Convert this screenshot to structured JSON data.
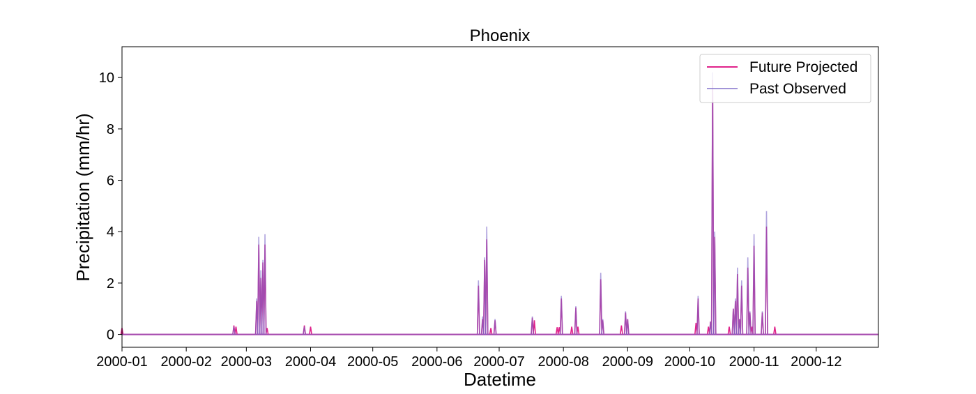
{
  "chart_data": {
    "type": "line",
    "title": "Phoenix",
    "xlabel": "Datetime",
    "ylabel": "Precipitation (mm/hr)",
    "xlim": [
      "2000-01-01",
      "2000-12-31"
    ],
    "ylim": [
      -0.5,
      11.2
    ],
    "x_tick_labels": [
      "2000-01",
      "2000-02",
      "2000-03",
      "2000-04",
      "2000-05",
      "2000-06",
      "2000-07",
      "2000-08",
      "2000-09",
      "2000-10",
      "2000-11",
      "2000-12"
    ],
    "x_tick_dates": [
      "2000-01-01",
      "2000-02-01",
      "2000-03-01",
      "2000-04-01",
      "2000-05-01",
      "2000-06-01",
      "2000-07-01",
      "2000-08-01",
      "2000-09-01",
      "2000-10-01",
      "2000-11-01",
      "2000-12-01"
    ],
    "y_ticks": [
      0,
      2,
      4,
      6,
      8,
      10
    ],
    "y_tick_labels": [
      "0",
      "2",
      "4",
      "6",
      "8",
      "10"
    ],
    "grid": false,
    "legend": {
      "position": "top-right",
      "entries": [
        "Future Projected",
        "Past Observed"
      ]
    },
    "series": [
      {
        "name": "Future Projected",
        "color": "#e0218a",
        "opacity": 1.0,
        "spikes": [
          [
            "2000-01-01",
            0.25
          ],
          [
            "2000-02-24",
            0.35
          ],
          [
            "2000-02-25",
            0.3
          ],
          [
            "2000-03-06",
            1.3
          ],
          [
            "2000-03-07",
            3.5
          ],
          [
            "2000-03-08",
            2.2
          ],
          [
            "2000-03-09",
            2.8
          ],
          [
            "2000-03-10",
            3.5
          ],
          [
            "2000-03-11",
            0.25
          ],
          [
            "2000-03-29",
            0.35
          ],
          [
            "2000-04-01",
            0.3
          ],
          [
            "2000-06-21",
            1.9
          ],
          [
            "2000-06-23",
            0.6
          ],
          [
            "2000-06-24",
            2.9
          ],
          [
            "2000-06-25",
            3.7
          ],
          [
            "2000-06-27",
            0.25
          ],
          [
            "2000-06-29",
            0.55
          ],
          [
            "2000-07-17",
            0.65
          ],
          [
            "2000-07-18",
            0.55
          ],
          [
            "2000-07-29",
            0.28
          ],
          [
            "2000-07-30",
            0.28
          ],
          [
            "2000-07-31",
            1.4
          ],
          [
            "2000-08-05",
            0.3
          ],
          [
            "2000-08-07",
            1.05
          ],
          [
            "2000-08-08",
            0.3
          ],
          [
            "2000-08-19",
            2.15
          ],
          [
            "2000-08-20",
            0.55
          ],
          [
            "2000-08-29",
            0.35
          ],
          [
            "2000-08-31",
            0.85
          ],
          [
            "2000-09-01",
            0.6
          ],
          [
            "2000-10-04",
            0.45
          ],
          [
            "2000-10-05",
            1.4
          ],
          [
            "2000-10-10",
            0.3
          ],
          [
            "2000-10-11",
            0.5
          ],
          [
            "2000-10-12",
            9.9
          ],
          [
            "2000-10-13",
            3.8
          ],
          [
            "2000-10-20",
            0.3
          ],
          [
            "2000-10-22",
            1.0
          ],
          [
            "2000-10-23",
            1.3
          ],
          [
            "2000-10-24",
            2.35
          ],
          [
            "2000-10-25",
            0.6
          ],
          [
            "2000-10-26",
            1.9
          ],
          [
            "2000-10-29",
            2.6
          ],
          [
            "2000-10-30",
            0.85
          ],
          [
            "2000-10-31",
            0.3
          ],
          [
            "2000-11-01",
            3.45
          ],
          [
            "2000-11-05",
            0.85
          ],
          [
            "2000-11-07",
            4.2
          ],
          [
            "2000-11-11",
            0.3
          ]
        ]
      },
      {
        "name": "Past Observed",
        "color": "#7b68c8",
        "opacity": 0.6,
        "spikes": [
          [
            "2000-02-24",
            0.3
          ],
          [
            "2000-03-06",
            1.4
          ],
          [
            "2000-03-07",
            3.8
          ],
          [
            "2000-03-08",
            2.5
          ],
          [
            "2000-03-09",
            2.9
          ],
          [
            "2000-03-10",
            3.9
          ],
          [
            "2000-03-29",
            0.3
          ],
          [
            "2000-06-21",
            2.1
          ],
          [
            "2000-06-23",
            0.7
          ],
          [
            "2000-06-24",
            3.0
          ],
          [
            "2000-06-25",
            4.2
          ],
          [
            "2000-06-29",
            0.6
          ],
          [
            "2000-07-17",
            0.7
          ],
          [
            "2000-07-31",
            1.5
          ],
          [
            "2000-08-07",
            1.1
          ],
          [
            "2000-08-19",
            2.4
          ],
          [
            "2000-08-20",
            0.6
          ],
          [
            "2000-08-31",
            0.9
          ],
          [
            "2000-09-01",
            0.6
          ],
          [
            "2000-10-05",
            1.5
          ],
          [
            "2000-10-11",
            0.5
          ],
          [
            "2000-10-12",
            10.2
          ],
          [
            "2000-10-13",
            4.0
          ],
          [
            "2000-10-22",
            1.0
          ],
          [
            "2000-10-23",
            1.4
          ],
          [
            "2000-10-24",
            2.6
          ],
          [
            "2000-10-25",
            0.6
          ],
          [
            "2000-10-26",
            2.1
          ],
          [
            "2000-10-29",
            3.0
          ],
          [
            "2000-10-30",
            0.9
          ],
          [
            "2000-11-01",
            3.9
          ],
          [
            "2000-11-05",
            0.9
          ],
          [
            "2000-11-07",
            4.8
          ]
        ]
      }
    ]
  }
}
